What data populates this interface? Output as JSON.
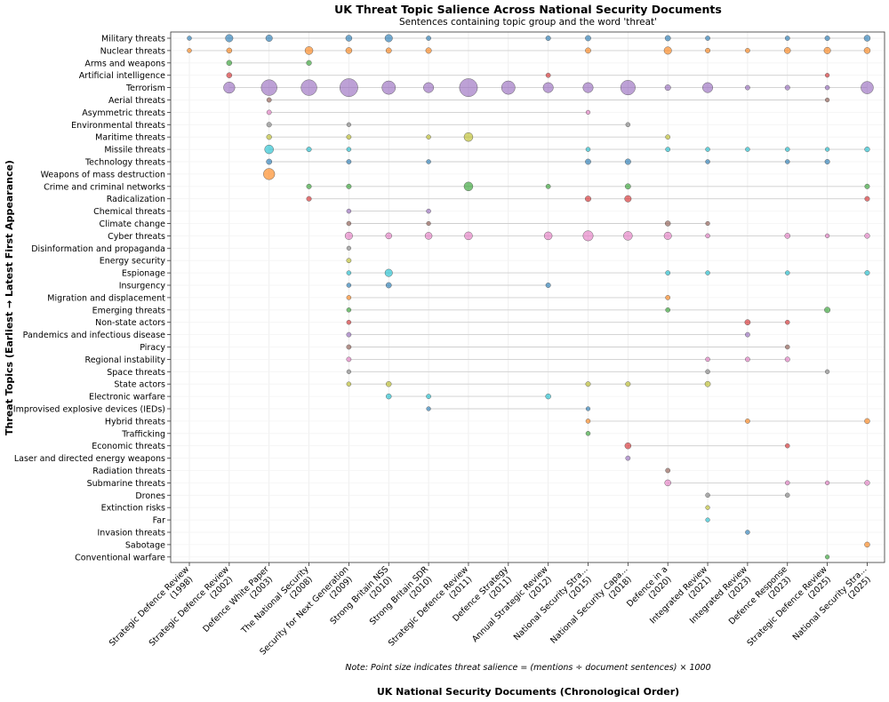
{
  "chart_data": {
    "type": "scatter",
    "title": "UK Threat Topic Salience Across National Security Documents",
    "subtitle": "Sentences containing topic group and the word 'threat'",
    "xlabel": "UK National Security Documents (Chronological Order)",
    "ylabel": "Threat Topics (Earliest → Latest First Appearance)",
    "note": "Note: Point size indicates threat salience = (mentions ÷ document sentences) × 1000",
    "grid": true,
    "documents": [
      {
        "name": "Strategic Defence Review",
        "year": "(1998)"
      },
      {
        "name": "Strategic Defence Review",
        "year": "(2002)"
      },
      {
        "name": "Defence White Paper",
        "year": "(2003)"
      },
      {
        "name": "The National Security",
        "year": "(2008)"
      },
      {
        "name": "Security for Next Generation",
        "year": "(2009)"
      },
      {
        "name": "Strong Britain NSS",
        "year": "(2010)"
      },
      {
        "name": "Strong Britain SDR",
        "year": "(2010)"
      },
      {
        "name": "Strategic Defence Review",
        "year": "(2011)"
      },
      {
        "name": "Defence Strategy",
        "year": "(2011)"
      },
      {
        "name": "Annual Strategic Review",
        "year": "(2012)"
      },
      {
        "name": "National Security Stra...",
        "year": "(2015)"
      },
      {
        "name": "National Security Capa...",
        "year": "(2018)"
      },
      {
        "name": "Defence in a",
        "year": "(2020)"
      },
      {
        "name": "Integrated Review",
        "year": "(2021)"
      },
      {
        "name": "Integrated Review",
        "year": "(2023)"
      },
      {
        "name": "Defence Response",
        "year": "(2023)"
      },
      {
        "name": "Strategic Defence Review",
        "year": "(2025)"
      },
      {
        "name": "National Security Stra...",
        "year": "(2025)"
      }
    ],
    "topics": [
      {
        "name": "Military threats",
        "color": "#1f77b4",
        "points": [
          [
            0,
            0.4
          ],
          [
            1,
            1.8
          ],
          [
            2,
            1.4
          ],
          [
            4,
            1.2
          ],
          [
            5,
            1.8
          ],
          [
            6,
            0.5
          ],
          [
            9,
            0.6
          ],
          [
            10,
            0.9
          ],
          [
            12,
            0.9
          ],
          [
            13,
            0.5
          ],
          [
            15,
            0.5
          ],
          [
            16,
            0.6
          ],
          [
            17,
            1.2
          ]
        ]
      },
      {
        "name": "Nuclear threats",
        "color": "#ff7f0e",
        "points": [
          [
            0,
            0.4
          ],
          [
            1,
            0.8
          ],
          [
            3,
            2.0
          ],
          [
            4,
            1.2
          ],
          [
            5,
            0.9
          ],
          [
            6,
            1.0
          ],
          [
            10,
            0.9
          ],
          [
            12,
            1.8
          ],
          [
            13,
            0.6
          ],
          [
            14,
            0.5
          ],
          [
            15,
            1.2
          ],
          [
            16,
            1.4
          ],
          [
            17,
            1.2
          ]
        ]
      },
      {
        "name": "Arms and weapons",
        "color": "#2ca02c",
        "points": [
          [
            1,
            0.8
          ],
          [
            3,
            0.7
          ]
        ]
      },
      {
        "name": "Artificial intelligence",
        "color": "#d62728",
        "points": [
          [
            1,
            0.8
          ],
          [
            9,
            0.5
          ],
          [
            16,
            0.3
          ]
        ]
      },
      {
        "name": "Terrorism",
        "color": "#9467bd",
        "points": [
          [
            1,
            3.5
          ],
          [
            2,
            5.5
          ],
          [
            3,
            5.5
          ],
          [
            4,
            6.5
          ],
          [
            5,
            4.5
          ],
          [
            6,
            3.0
          ],
          [
            7,
            6.5
          ],
          [
            8,
            4.5
          ],
          [
            9,
            3.0
          ],
          [
            10,
            3.0
          ],
          [
            11,
            5.0
          ],
          [
            12,
            1.0
          ],
          [
            13,
            3.0
          ],
          [
            14,
            0.5
          ],
          [
            15,
            0.6
          ],
          [
            16,
            0.4
          ],
          [
            17,
            4.0
          ]
        ]
      },
      {
        "name": "Aerial threats",
        "color": "#8c564b",
        "points": [
          [
            2,
            0.5
          ],
          [
            16,
            0.3
          ]
        ]
      },
      {
        "name": "Asymmetric threats",
        "color": "#e377c2",
        "points": [
          [
            2,
            0.5
          ],
          [
            10,
            0.3
          ]
        ]
      },
      {
        "name": "Environmental threats",
        "color": "#7f7f7f",
        "points": [
          [
            2,
            0.6
          ],
          [
            4,
            0.3
          ],
          [
            11,
            0.4
          ]
        ]
      },
      {
        "name": "Maritime threats",
        "color": "#bcbd22",
        "points": [
          [
            2,
            0.7
          ],
          [
            4,
            0.5
          ],
          [
            6,
            0.4
          ],
          [
            7,
            2.4
          ],
          [
            12,
            0.5
          ]
        ]
      },
      {
        "name": "Missile threats",
        "color": "#17becf",
        "points": [
          [
            2,
            2.4
          ],
          [
            3,
            0.6
          ],
          [
            4,
            0.4
          ],
          [
            10,
            0.4
          ],
          [
            12,
            0.5
          ],
          [
            13,
            0.4
          ],
          [
            14,
            0.4
          ],
          [
            15,
            0.4
          ],
          [
            16,
            0.3
          ],
          [
            17,
            0.7
          ]
        ]
      },
      {
        "name": "Technology threats",
        "color": "#1f77b4",
        "points": [
          [
            2,
            0.9
          ],
          [
            4,
            0.5
          ],
          [
            6,
            0.4
          ],
          [
            10,
            0.9
          ],
          [
            11,
            1.0
          ],
          [
            13,
            0.4
          ],
          [
            15,
            0.4
          ],
          [
            16,
            0.6
          ]
        ]
      },
      {
        "name": "Weapons of mass destruction",
        "color": "#ff7f0e",
        "points": [
          [
            2,
            3.5
          ]
        ]
      },
      {
        "name": "Crime and criminal networks",
        "color": "#2ca02c",
        "points": [
          [
            3,
            0.6
          ],
          [
            4,
            0.6
          ],
          [
            7,
            2.4
          ],
          [
            9,
            0.5
          ],
          [
            11,
            0.9
          ],
          [
            17,
            0.6
          ]
        ]
      },
      {
        "name": "Radicalization",
        "color": "#d62728",
        "points": [
          [
            3,
            0.6
          ],
          [
            10,
            1.0
          ],
          [
            11,
            1.4
          ],
          [
            17,
            0.6
          ]
        ]
      },
      {
        "name": "Chemical threats",
        "color": "#9467bd",
        "points": [
          [
            4,
            0.4
          ],
          [
            6,
            0.4
          ]
        ]
      },
      {
        "name": "Climate change",
        "color": "#8c564b",
        "points": [
          [
            4,
            0.4
          ],
          [
            6,
            0.3
          ],
          [
            12,
            0.8
          ],
          [
            13,
            0.3
          ]
        ]
      },
      {
        "name": "Cyber threats",
        "color": "#e377c2",
        "points": [
          [
            4,
            1.8
          ],
          [
            5,
            1.2
          ],
          [
            6,
            1.6
          ],
          [
            7,
            2.0
          ],
          [
            9,
            2.0
          ],
          [
            10,
            3.0
          ],
          [
            11,
            2.4
          ],
          [
            12,
            1.8
          ],
          [
            13,
            0.4
          ],
          [
            15,
            0.8
          ],
          [
            16,
            0.3
          ],
          [
            17,
            0.7
          ]
        ]
      },
      {
        "name": "Disinformation and propaganda",
        "color": "#7f7f7f",
        "points": [
          [
            4,
            0.3
          ]
        ]
      },
      {
        "name": "Energy security",
        "color": "#bcbd22",
        "points": [
          [
            4,
            0.5
          ]
        ]
      },
      {
        "name": "Espionage",
        "color": "#17becf",
        "points": [
          [
            4,
            0.4
          ],
          [
            5,
            1.8
          ],
          [
            12,
            0.5
          ],
          [
            13,
            0.4
          ],
          [
            15,
            0.4
          ],
          [
            17,
            0.6
          ]
        ]
      },
      {
        "name": "Insurgency",
        "color": "#1f77b4",
        "points": [
          [
            4,
            0.4
          ],
          [
            5,
            0.9
          ],
          [
            9,
            0.6
          ]
        ]
      },
      {
        "name": "Migration and displacement",
        "color": "#ff7f0e",
        "points": [
          [
            4,
            0.4
          ],
          [
            12,
            0.5
          ]
        ]
      },
      {
        "name": "Emerging threats",
        "color": "#2ca02c",
        "points": [
          [
            4,
            0.4
          ],
          [
            12,
            0.5
          ],
          [
            16,
            1.0
          ]
        ]
      },
      {
        "name": "Non-state actors",
        "color": "#d62728",
        "points": [
          [
            4,
            0.4
          ],
          [
            14,
            0.9
          ],
          [
            15,
            0.4
          ]
        ]
      },
      {
        "name": "Pandemics and infectious disease",
        "color": "#9467bd",
        "points": [
          [
            4,
            0.5
          ],
          [
            14,
            0.5
          ]
        ]
      },
      {
        "name": "Piracy",
        "color": "#8c564b",
        "points": [
          [
            4,
            0.5
          ],
          [
            15,
            0.4
          ]
        ]
      },
      {
        "name": "Regional instability",
        "color": "#e377c2",
        "points": [
          [
            4,
            0.5
          ],
          [
            13,
            0.4
          ],
          [
            14,
            0.5
          ],
          [
            15,
            0.6
          ]
        ]
      },
      {
        "name": "Space threats",
        "color": "#7f7f7f",
        "points": [
          [
            4,
            0.3
          ],
          [
            13,
            0.4
          ],
          [
            16,
            0.3
          ]
        ]
      },
      {
        "name": "State actors",
        "color": "#bcbd22",
        "points": [
          [
            4,
            0.4
          ],
          [
            5,
            0.8
          ],
          [
            10,
            0.6
          ],
          [
            11,
            0.6
          ],
          [
            13,
            0.9
          ]
        ]
      },
      {
        "name": "Electronic warfare",
        "color": "#17becf",
        "points": [
          [
            5,
            0.8
          ],
          [
            6,
            0.5
          ],
          [
            9,
            0.8
          ]
        ]
      },
      {
        "name": "Improvised explosive devices (IEDs)",
        "color": "#1f77b4",
        "points": [
          [
            6,
            0.3
          ],
          [
            10,
            0.3
          ]
        ]
      },
      {
        "name": "Hybrid threats",
        "color": "#ff7f0e",
        "points": [
          [
            10,
            0.4
          ],
          [
            14,
            0.5
          ],
          [
            17,
            0.8
          ]
        ]
      },
      {
        "name": "Trafficking",
        "color": "#2ca02c",
        "points": [
          [
            10,
            0.4
          ]
        ]
      },
      {
        "name": "Economic threats",
        "color": "#d62728",
        "points": [
          [
            11,
            1.2
          ],
          [
            15,
            0.4
          ]
        ]
      },
      {
        "name": "Laser and directed energy weapons",
        "color": "#9467bd",
        "points": [
          [
            11,
            0.5
          ]
        ]
      },
      {
        "name": "Radiation threats",
        "color": "#8c564b",
        "points": [
          [
            12,
            0.5
          ]
        ]
      },
      {
        "name": "Submarine threats",
        "color": "#e377c2",
        "points": [
          [
            12,
            1.2
          ],
          [
            15,
            0.4
          ],
          [
            16,
            0.3
          ],
          [
            17,
            0.7
          ]
        ]
      },
      {
        "name": "Drones",
        "color": "#7f7f7f",
        "points": [
          [
            13,
            0.4
          ],
          [
            15,
            0.4
          ]
        ]
      },
      {
        "name": "Extinction risks",
        "color": "#bcbd22",
        "points": [
          [
            13,
            0.3
          ]
        ]
      },
      {
        "name": "Far",
        "color": "#17becf",
        "points": [
          [
            13,
            0.3
          ]
        ]
      },
      {
        "name": "Invasion threats",
        "color": "#1f77b4",
        "points": [
          [
            14,
            0.4
          ]
        ]
      },
      {
        "name": "Sabotage",
        "color": "#ff7f0e",
        "points": [
          [
            17,
            0.8
          ]
        ]
      },
      {
        "name": "Conventional warfare",
        "color": "#2ca02c",
        "points": [
          [
            16,
            0.3
          ]
        ]
      }
    ]
  }
}
